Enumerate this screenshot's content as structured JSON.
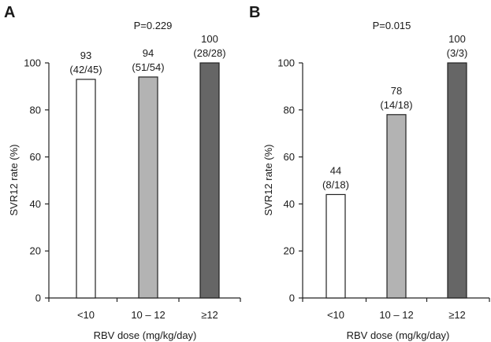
{
  "chart_data": [
    {
      "type": "bar",
      "panel": "A",
      "pvalue": "P=0.229",
      "categories": [
        "<10",
        "10 – 12",
        "≥12"
      ],
      "values": [
        93,
        94,
        100
      ],
      "value_labels": [
        "93",
        "94",
        "100"
      ],
      "count_labels": [
        "(42/45)",
        "(51/54)",
        "(28/28)"
      ],
      "bar_colors": [
        "#ffffff",
        "#b3b3b3",
        "#666666"
      ],
      "xlabel": "RBV dose (mg/kg/day)",
      "ylabel": "SVR12 rate (%)",
      "ylim": [
        0,
        100
      ],
      "yticks": [
        0,
        20,
        40,
        60,
        80,
        100
      ],
      "grid": false
    },
    {
      "type": "bar",
      "panel": "B",
      "pvalue": "P=0.015",
      "categories": [
        "<10",
        "10 – 12",
        "≥12"
      ],
      "values": [
        44,
        78,
        100
      ],
      "value_labels": [
        "44",
        "78",
        "100"
      ],
      "count_labels": [
        "(8/18)",
        "(14/18)",
        "(3/3)"
      ],
      "bar_colors": [
        "#ffffff",
        "#b3b3b3",
        "#666666"
      ],
      "xlabel": "RBV dose (mg/kg/day)",
      "ylabel": "SVR12 rate (%)",
      "ylim": [
        0,
        100
      ],
      "yticks": [
        0,
        20,
        40,
        60,
        80,
        100
      ],
      "grid": false
    }
  ]
}
